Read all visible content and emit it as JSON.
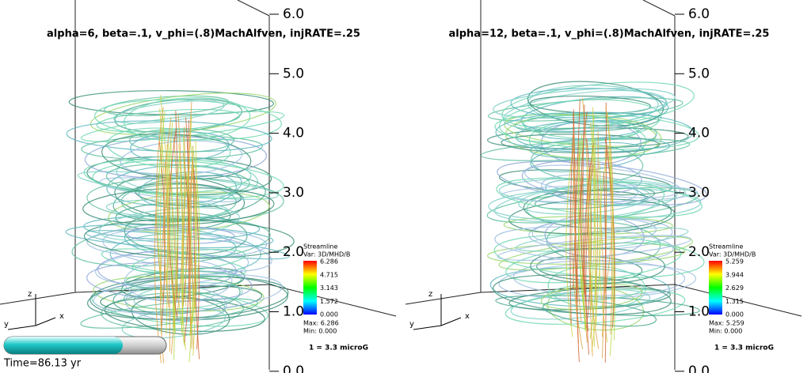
{
  "panels": [
    {
      "title": "alpha=6, beta=.1, v_phi=(.8)MachAlfven, injRATE=.25",
      "axis_ticks": [
        "6.0",
        "5.0",
        "4.0",
        "3.0",
        "2.0",
        "1.0",
        "0.0"
      ],
      "legend": {
        "title": "Streamline",
        "var": "Var: 3D/MHD/B",
        "ticks": [
          "6.286",
          "4.715",
          "3.143",
          "1.572",
          "0.000"
        ],
        "max": "Max: 6.286",
        "min": "Min: 0.000"
      },
      "scale": "1 = 3.3 microG"
    },
    {
      "title": "alpha=12, beta=.1, v_phi=(.8)MachAlfven, injRATE=.25",
      "axis_ticks": [
        "6.0",
        "5.0",
        "4.0",
        "3.0",
        "2.0",
        "1.0",
        "0.0"
      ],
      "legend": {
        "title": "Streamline",
        "var": "Var: 3D/MHD/B",
        "ticks": [
          "5.259",
          "3.944",
          "2.629",
          "1.315",
          "0.000"
        ],
        "max": "Max: 5.259",
        "min": "Min: 0.000"
      },
      "scale": "1 = 3.3 microG"
    }
  ],
  "triad": {
    "z": "z",
    "y": "y",
    "x": "x"
  },
  "time": "Time=86.13 yr"
}
